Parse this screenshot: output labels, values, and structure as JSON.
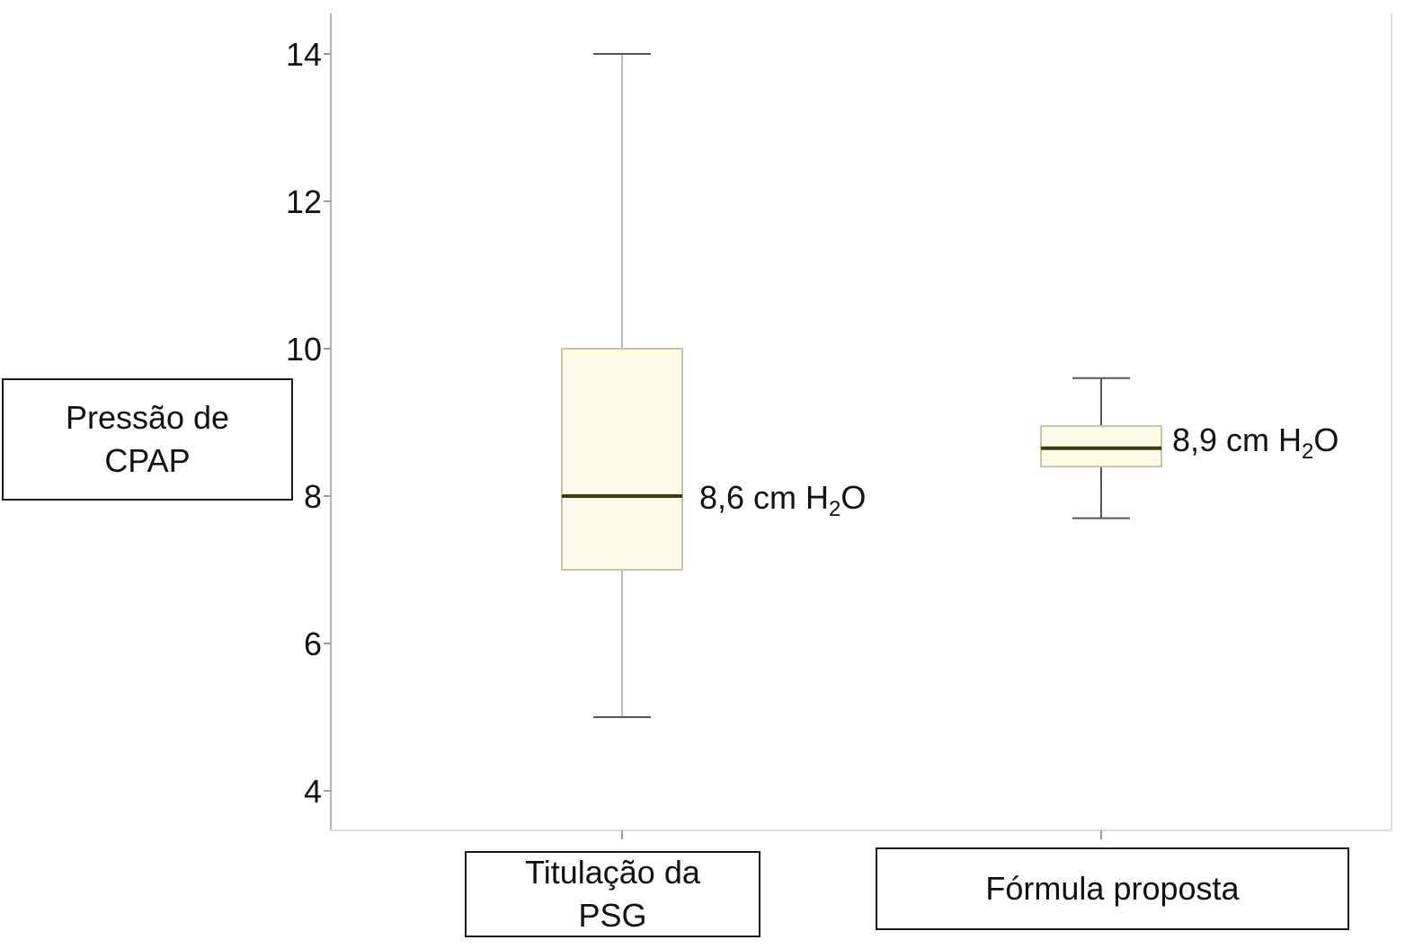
{
  "ylabel_lines": [
    "Pressão de",
    "CPAP"
  ],
  "xlabels": {
    "psg_lines": [
      "Titulação da",
      "PSG"
    ],
    "formula_lines": [
      "Fórmula proposta"
    ]
  },
  "annotations": {
    "psg": {
      "prefix": "8,6 cm H",
      "sub": "2",
      "suffix": "O"
    },
    "formula": {
      "prefix": "8,9 cm H",
      "sub": "2",
      "suffix": "O"
    }
  },
  "colors": {
    "box_fill": "#fdfce8",
    "box_edge": "#c8c6a0",
    "median": "#3d3a16",
    "whisker": "#bbbbbb",
    "axis": "#b5b5b5"
  },
  "chart_data": {
    "type": "box",
    "ylim": [
      3.5,
      14.5
    ],
    "yticks": [
      4,
      6,
      8,
      10,
      12,
      14
    ],
    "xlabel": "",
    "ylabel": "Pressão de CPAP",
    "grid": false,
    "categories": [
      "Titulação da PSG",
      "Fórmula proposta"
    ],
    "series": [
      {
        "category": "Titulação da PSG",
        "min": 5,
        "q1": 7,
        "median": 8,
        "q3": 10,
        "max": 14,
        "annotation": "8,6 cm H2O"
      },
      {
        "category": "Fórmula proposta",
        "min": 7.7,
        "q1": 8.4,
        "median": 8.65,
        "q3": 8.95,
        "max": 9.6,
        "annotation": "8,9 cm H2O"
      }
    ]
  }
}
